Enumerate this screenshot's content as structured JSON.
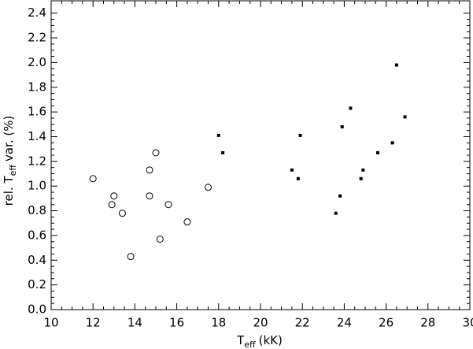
{
  "chart_data": {
    "type": "scatter",
    "xlabel": {
      "main": "T",
      "sub": "eff",
      "rest": "(kK)"
    },
    "ylabel": {
      "main": "rel. T",
      "sub": "eff",
      "rest": "var. (%)"
    },
    "xlim": [
      10,
      30
    ],
    "xticks": [
      10,
      12,
      14,
      16,
      18,
      20,
      22,
      24,
      26,
      28,
      30
    ],
    "ylim": [
      0,
      2.5
    ],
    "yticks": [
      {
        "value": 0,
        "label": "0.0"
      },
      0.2,
      0.4,
      0.6,
      0.8,
      {
        "value": 1,
        "label": "1.0"
      },
      1.2,
      1.4,
      1.6,
      1.8,
      {
        "value": 2,
        "label": "2.0"
      },
      2.2,
      2.4
    ],
    "grid": false,
    "series": [
      {
        "marker": "open-circle",
        "color": "#000000",
        "x": [
          12.0,
          12.9,
          13.0,
          13.4,
          13.8,
          14.7,
          14.7,
          15.0,
          15.2,
          15.6,
          16.5,
          17.5
        ],
        "values": [
          1.06,
          0.85,
          0.92,
          0.78,
          0.43,
          1.13,
          0.92,
          1.27,
          0.57,
          0.85,
          0.71,
          0.99
        ]
      },
      {
        "marker": "filled-square",
        "color": "#000000",
        "x": [
          18.0,
          18.2,
          21.5,
          21.9,
          21.8,
          23.6,
          23.8,
          23.9,
          24.3,
          24.8,
          24.9,
          25.6,
          26.3,
          26.5,
          26.9
        ],
        "values": [
          1.41,
          1.27,
          1.13,
          1.41,
          1.06,
          0.78,
          0.92,
          1.48,
          1.63,
          1.06,
          1.13,
          1.27,
          1.35,
          1.98,
          1.56
        ]
      }
    ]
  }
}
